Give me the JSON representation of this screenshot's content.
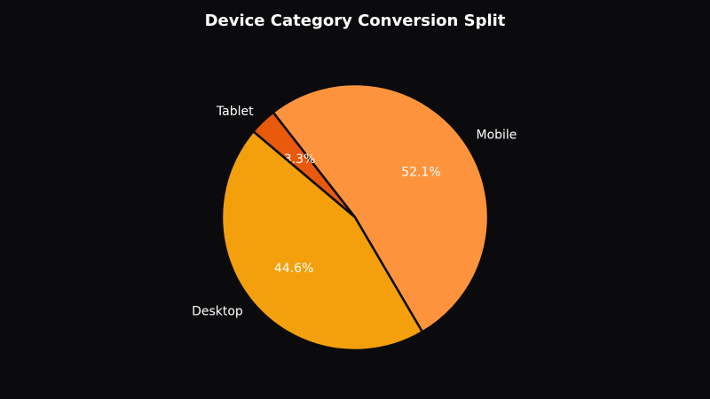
{
  "chart_data": {
    "type": "pie",
    "title": "Device Category Conversion Split",
    "categories": [
      "Mobile",
      "Tablet",
      "Desktop"
    ],
    "values": [
      52.1,
      3.3,
      44.6
    ],
    "value_labels": [
      "52.1%",
      "3.3%",
      "44.6%"
    ],
    "colors": [
      "#fd943d",
      "#e8590c",
      "#f4a00c"
    ]
  }
}
